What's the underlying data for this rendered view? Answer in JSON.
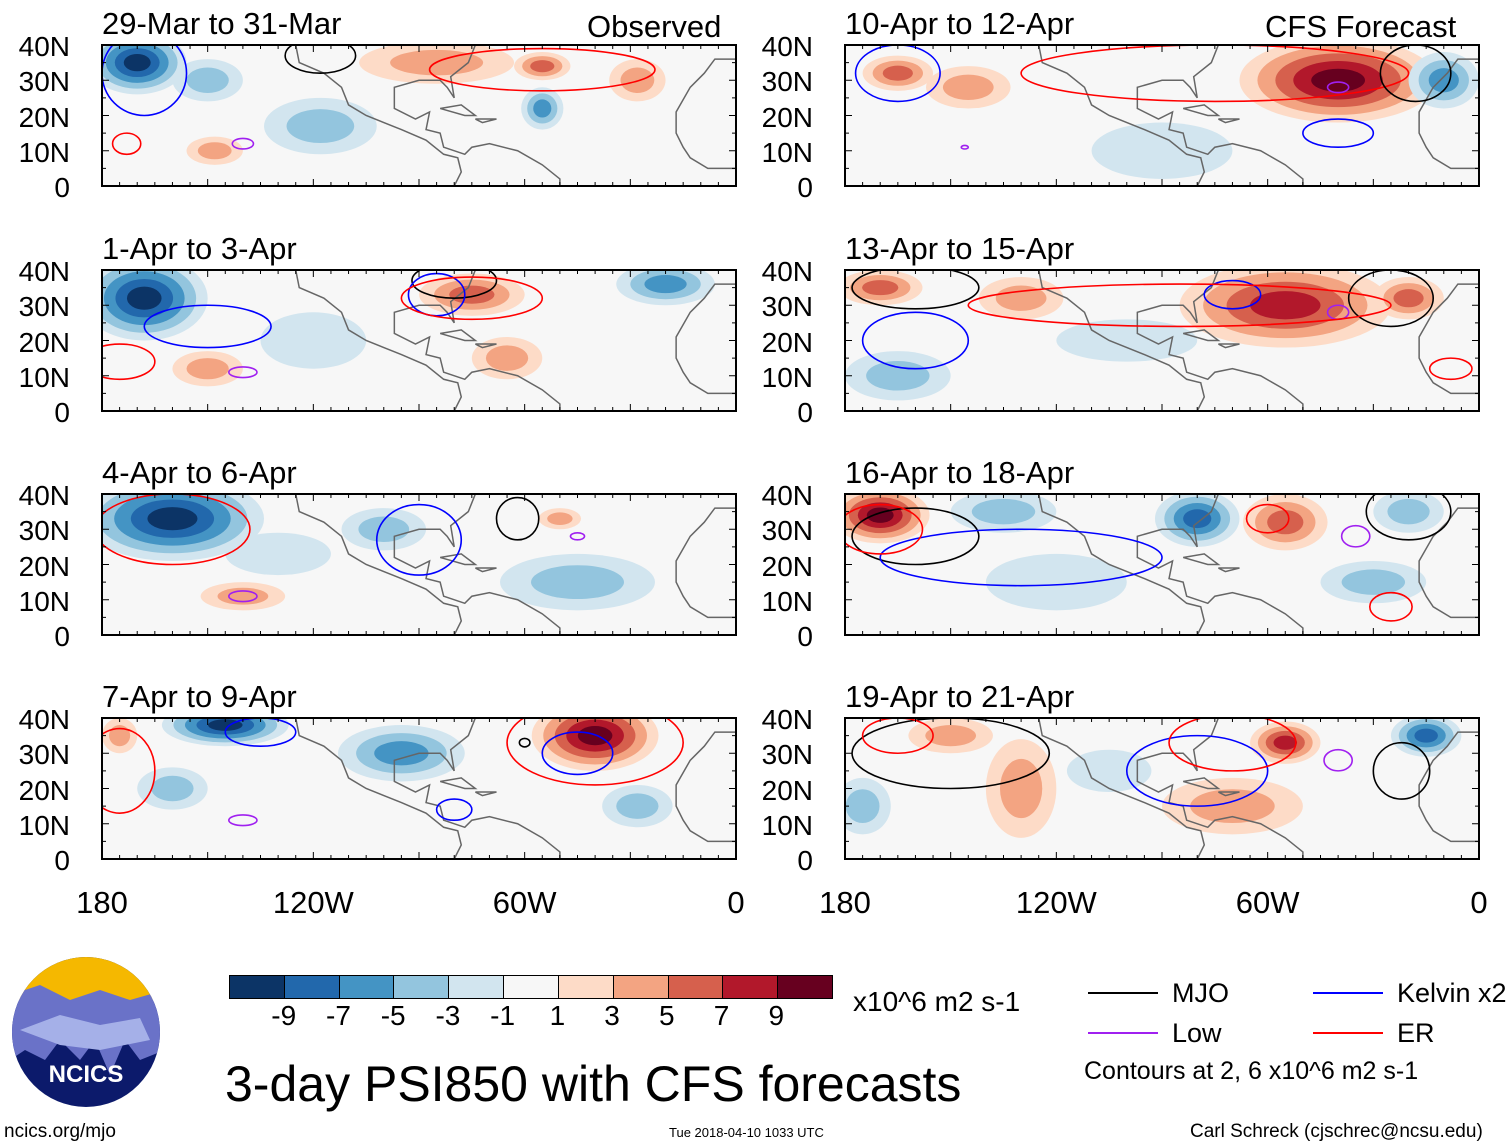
{
  "title": "3-day PSI850 with CFS forecasts",
  "units": "x10^6 m2 s-1",
  "contour_note": "Contours at 2, 6 x10^6 m2 s-1",
  "footer": {
    "left": "ncics.org/mjo",
    "center": "Tue 2018-04-10 1033 UTC",
    "right": "Carl Schreck (cjschrec@ncsu.edu)"
  },
  "logo_text": "NCICS",
  "column_labels": {
    "left": "Observed",
    "right": "CFS Forecast"
  },
  "y_ticks": [
    "40N",
    "30N",
    "20N",
    "10N",
    "0"
  ],
  "x_ticks": [
    "180",
    "120W",
    "60W",
    "0"
  ],
  "colorbar": {
    "labels": [
      "-9",
      "-7",
      "-5",
      "-3",
      "-1",
      "1",
      "3",
      "5",
      "7",
      "9"
    ],
    "colors": [
      "#0c3466",
      "#2268ac",
      "#4494c4",
      "#93c5de",
      "#d2e5ef",
      "#f7f7f7",
      "#fddbc7",
      "#f3a482",
      "#d6604d",
      "#b2182b",
      "#67001f"
    ]
  },
  "legend": [
    {
      "label": "MJO",
      "color": "#000000"
    },
    {
      "label": "Kelvin x2",
      "color": "#0000ff"
    },
    {
      "label": "Low",
      "color": "#a020f0"
    },
    {
      "label": "ER",
      "color": "#ff0000"
    }
  ],
  "chart_data": {
    "type": "heatmap",
    "xlim": [
      -180,
      0
    ],
    "ylim": [
      0,
      40
    ],
    "panels": [
      {
        "title": "29-Mar to 31-Mar",
        "blobs": [
          [
            -170,
            35,
            14,
            9,
            -9
          ],
          [
            -118,
            17,
            16,
            8,
            -3
          ],
          [
            -55,
            22,
            6,
            6,
            -5
          ],
          [
            -85,
            35,
            22,
            6,
            3
          ],
          [
            -55,
            34,
            8,
            4,
            5
          ],
          [
            -148,
            10,
            8,
            4,
            3
          ],
          [
            -28,
            30,
            8,
            6,
            3
          ],
          [
            -150,
            30,
            10,
            6,
            -3
          ]
        ],
        "contours": [
          [
            "MJO",
            -118,
            37,
            10,
            5
          ],
          [
            "Kelvin",
            -168,
            32,
            12,
            12
          ],
          [
            "Low",
            -140,
            12,
            3,
            1.5
          ],
          [
            "ER",
            -55,
            33,
            32,
            6
          ],
          [
            "ER",
            -173,
            12,
            4,
            3
          ]
        ]
      },
      {
        "title": "1-Apr to 3-Apr",
        "blobs": [
          [
            -168,
            32,
            18,
            12,
            -9
          ],
          [
            -20,
            36,
            14,
            6,
            -5
          ],
          [
            -75,
            33,
            15,
            6,
            5
          ],
          [
            -150,
            12,
            10,
            5,
            3
          ],
          [
            -120,
            20,
            15,
            8,
            -1
          ],
          [
            -65,
            15,
            10,
            6,
            3
          ]
        ],
        "contours": [
          [
            "MJO",
            -80,
            37,
            12,
            5
          ],
          [
            "Kelvin",
            -150,
            24,
            18,
            6
          ],
          [
            "Kelvin",
            -85,
            33,
            8,
            6
          ],
          [
            "Low",
            -140,
            11,
            4,
            1.5
          ],
          [
            "ER",
            -75,
            32,
            20,
            6
          ],
          [
            "ER",
            -175,
            14,
            10,
            5
          ]
        ]
      },
      {
        "title": "4-Apr to 6-Apr",
        "blobs": [
          [
            -160,
            33,
            26,
            12,
            -9
          ],
          [
            -45,
            15,
            22,
            8,
            -3
          ],
          [
            -130,
            23,
            15,
            6,
            -1
          ],
          [
            -140,
            11,
            12,
            4,
            3
          ],
          [
            -50,
            33,
            6,
            3,
            3
          ],
          [
            -100,
            30,
            12,
            6,
            -3
          ]
        ],
        "contours": [
          [
            "MJO",
            -62,
            33,
            6,
            6
          ],
          [
            "Kelvin",
            -90,
            27,
            12,
            10
          ],
          [
            "Low",
            -140,
            11,
            4,
            1.5
          ],
          [
            "ER",
            -160,
            30,
            22,
            10
          ],
          [
            "Low",
            -45,
            28,
            2,
            1
          ]
        ]
      },
      {
        "title": "7-Apr to 9-Apr",
        "blobs": [
          [
            -145,
            38,
            18,
            6,
            -9
          ],
          [
            -95,
            30,
            18,
            8,
            -5
          ],
          [
            -40,
            35,
            18,
            10,
            9
          ],
          [
            -160,
            20,
            10,
            6,
            -3
          ],
          [
            -28,
            15,
            10,
            6,
            -3
          ],
          [
            -175,
            35,
            5,
            5,
            3
          ]
        ],
        "contours": [
          [
            "MJO",
            -60,
            33,
            1.5,
            1.2
          ],
          [
            "Kelvin",
            -45,
            30,
            10,
            6
          ],
          [
            "Kelvin",
            -80,
            14,
            5,
            3
          ],
          [
            "Low",
            -140,
            11,
            4,
            1.5
          ],
          [
            "Kelvin",
            -135,
            36,
            10,
            4
          ],
          [
            "ER",
            -40,
            33,
            25,
            12
          ],
          [
            "ER",
            -175,
            25,
            10,
            12
          ]
        ]
      },
      {
        "title": "10-Apr to 12-Apr",
        "blobs": [
          [
            -40,
            30,
            28,
            12,
            9
          ],
          [
            -145,
            28,
            12,
            6,
            3
          ],
          [
            -90,
            10,
            20,
            8,
            -1
          ],
          [
            -10,
            30,
            10,
            8,
            -5
          ],
          [
            -165,
            32,
            10,
            5,
            5
          ]
        ],
        "contours": [
          [
            "Kelvin",
            -40,
            15,
            10,
            4
          ],
          [
            "Kelvin",
            -165,
            32,
            12,
            8
          ],
          [
            "Low",
            -40,
            28,
            3,
            1.5
          ],
          [
            "Low",
            -146,
            11,
            1,
            0.5
          ],
          [
            "ER",
            -75,
            32,
            55,
            8
          ],
          [
            "MJO",
            -18,
            32,
            10,
            8
          ]
        ]
      },
      {
        "title": "13-Apr to 15-Apr",
        "blobs": [
          [
            -55,
            30,
            30,
            12,
            7
          ],
          [
            -170,
            35,
            12,
            5,
            5
          ],
          [
            -130,
            32,
            12,
            6,
            3
          ],
          [
            -165,
            10,
            15,
            7,
            -3
          ],
          [
            -100,
            20,
            20,
            6,
            -1
          ],
          [
            -20,
            32,
            10,
            6,
            5
          ]
        ],
        "contours": [
          [
            "MJO",
            -160,
            35,
            18,
            6
          ],
          [
            "MJO",
            -25,
            32,
            12,
            8
          ],
          [
            "Kelvin",
            -70,
            33,
            8,
            4
          ],
          [
            "Kelvin",
            -160,
            20,
            15,
            8
          ],
          [
            "Low",
            -40,
            28,
            3,
            2
          ],
          [
            "ER",
            -85,
            30,
            60,
            6
          ],
          [
            "ER",
            -8,
            12,
            6,
            3
          ]
        ]
      },
      {
        "title": "16-Apr to 18-Apr",
        "blobs": [
          [
            -170,
            34,
            14,
            8,
            9
          ],
          [
            -80,
            33,
            12,
            8,
            -7
          ],
          [
            -55,
            32,
            12,
            8,
            5
          ],
          [
            -30,
            15,
            15,
            6,
            -3
          ],
          [
            -135,
            35,
            15,
            6,
            -3
          ],
          [
            -120,
            15,
            20,
            8,
            -1
          ],
          [
            -20,
            35,
            10,
            6,
            -3
          ]
        ],
        "contours": [
          [
            "MJO",
            -160,
            28,
            18,
            8
          ],
          [
            "MJO",
            -20,
            35,
            12,
            8
          ],
          [
            "Kelvin",
            -130,
            22,
            40,
            8
          ],
          [
            "Low",
            -35,
            28,
            4,
            3
          ],
          [
            "ER",
            -170,
            30,
            12,
            7
          ],
          [
            "ER",
            -60,
            33,
            6,
            4
          ],
          [
            "ER",
            -25,
            8,
            6,
            4
          ]
        ]
      },
      {
        "title": "19-Apr to 21-Apr",
        "blobs": [
          [
            -130,
            20,
            10,
            14,
            3
          ],
          [
            -150,
            35,
            12,
            5,
            3
          ],
          [
            -55,
            33,
            10,
            6,
            7
          ],
          [
            -15,
            35,
            10,
            6,
            -7
          ],
          [
            -175,
            15,
            8,
            8,
            -3
          ],
          [
            -105,
            25,
            12,
            6,
            -1
          ],
          [
            -70,
            15,
            20,
            8,
            3
          ]
        ],
        "contours": [
          [
            "MJO",
            -150,
            30,
            28,
            10
          ],
          [
            "MJO",
            -22,
            25,
            8,
            8
          ],
          [
            "Kelvin",
            -80,
            25,
            20,
            10
          ],
          [
            "Low",
            -40,
            28,
            4,
            3
          ],
          [
            "ER",
            -70,
            33,
            18,
            8
          ],
          [
            "ER",
            -165,
            35,
            10,
            5
          ]
        ]
      }
    ]
  }
}
